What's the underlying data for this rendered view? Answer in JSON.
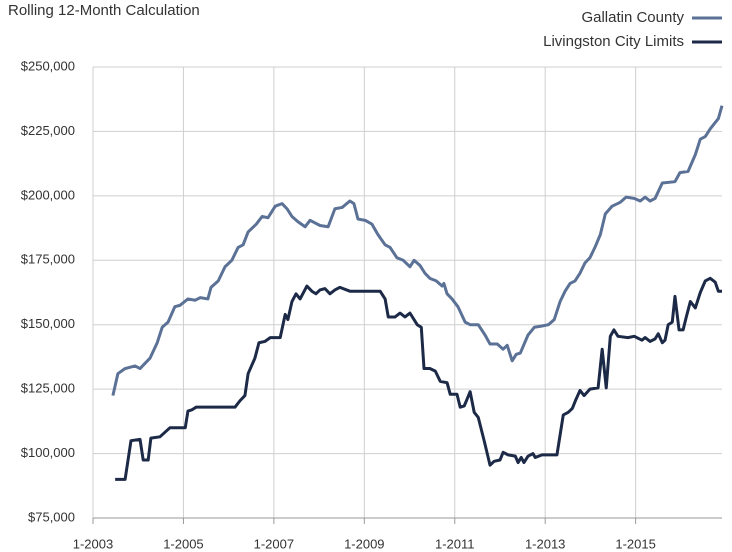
{
  "chart_data": {
    "type": "line",
    "title": "Rolling 12-Month Calculation",
    "xlim": [
      2003,
      2016.91
    ],
    "xticks": [
      {
        "value": 2003,
        "label": "1-2003"
      },
      {
        "value": 2005,
        "label": "1-2005"
      },
      {
        "value": 2007,
        "label": "1-2007"
      },
      {
        "value": 2009,
        "label": "1-2009"
      },
      {
        "value": 2011,
        "label": "1-2011"
      },
      {
        "value": 2013,
        "label": "1-2013"
      },
      {
        "value": 2015,
        "label": "1-2015"
      }
    ],
    "ylim": [
      75000,
      250000
    ],
    "yticks": [
      {
        "value": 75000,
        "label": "$75,000"
      },
      {
        "value": 100000,
        "label": "$100,000"
      },
      {
        "value": 125000,
        "label": "$125,000"
      },
      {
        "value": 150000,
        "label": "$150,000"
      },
      {
        "value": 175000,
        "label": "$175,000"
      },
      {
        "value": 200000,
        "label": "$200,000"
      },
      {
        "value": 225000,
        "label": "$225,000"
      },
      {
        "value": 250000,
        "label": "$250,000"
      }
    ],
    "grid": true,
    "legend": "top-right",
    "series": [
      {
        "name": "Gallatin County",
        "color": "#5b7196",
        "x": [
          2003.44,
          2003.55,
          2003.71,
          2003.93,
          2004.04,
          2004.26,
          2004.42,
          2004.53,
          2004.66,
          2004.81,
          2004.92,
          2005.1,
          2005.26,
          2005.37,
          2005.54,
          2005.61,
          2005.77,
          2005.92,
          2006.07,
          2006.21,
          2006.32,
          2006.43,
          2006.61,
          2006.74,
          2006.87,
          2007.03,
          2007.18,
          2007.29,
          2007.4,
          2007.53,
          2007.69,
          2007.8,
          2008.02,
          2008.2,
          2008.35,
          2008.51,
          2008.68,
          2008.77,
          2008.86,
          2009.02,
          2009.17,
          2009.3,
          2009.46,
          2009.57,
          2009.72,
          2009.86,
          2010.01,
          2010.1,
          2010.23,
          2010.34,
          2010.45,
          2010.59,
          2010.72,
          2010.76,
          2010.83,
          2010.94,
          2011.07,
          2011.23,
          2011.34,
          2011.52,
          2011.67,
          2011.78,
          2011.94,
          2012.07,
          2012.16,
          2012.27,
          2012.36,
          2012.45,
          2012.62,
          2012.76,
          2012.93,
          2013.07,
          2013.2,
          2013.33,
          2013.44,
          2013.55,
          2013.66,
          2013.77,
          2013.88,
          2013.99,
          2014.1,
          2014.22,
          2014.33,
          2014.48,
          2014.66,
          2014.79,
          2014.97,
          2015.1,
          2015.21,
          2015.32,
          2015.43,
          2015.59,
          2015.87,
          2015.98,
          2016.16,
          2016.32,
          2016.43,
          2016.54,
          2016.65,
          2016.83,
          2016.91
        ],
        "values": [
          122500,
          131000,
          133000,
          134000,
          133000,
          137000,
          143000,
          149000,
          151000,
          157000,
          157500,
          160000,
          159500,
          160500,
          160000,
          164500,
          167000,
          172500,
          175000,
          180000,
          181000,
          186000,
          189000,
          192000,
          191500,
          196000,
          197000,
          195000,
          192000,
          190000,
          188000,
          190500,
          188500,
          188000,
          195000,
          195500,
          198000,
          197000,
          191000,
          190500,
          189000,
          185000,
          181000,
          180000,
          176000,
          175000,
          172500,
          175000,
          173000,
          170000,
          168000,
          167000,
          165000,
          166000,
          162000,
          160000,
          157000,
          151000,
          150000,
          150000,
          146000,
          142500,
          142500,
          140500,
          142000,
          136000,
          138500,
          139000,
          146000,
          149000,
          149500,
          150000,
          152000,
          159000,
          163000,
          166000,
          167000,
          170000,
          174000,
          176000,
          180000,
          185000,
          193000,
          196000,
          197500,
          199500,
          199000,
          198000,
          199500,
          198000,
          199000,
          205000,
          205500,
          209000,
          209500,
          216000,
          222000,
          223000,
          226000,
          230000,
          235000
        ]
      },
      {
        "name": "Livingston City Limits",
        "color": "#1c2a47",
        "x": [
          2003.49,
          2003.71,
          2003.84,
          2004.04,
          2004.11,
          2004.22,
          2004.28,
          2004.48,
          2004.7,
          2005.04,
          2005.1,
          2005.19,
          2005.28,
          2006.14,
          2006.25,
          2006.36,
          2006.43,
          2006.58,
          2006.67,
          2006.8,
          2006.92,
          2007.14,
          2007.25,
          2007.31,
          2007.4,
          2007.49,
          2007.58,
          2007.73,
          2007.84,
          2007.93,
          2008.02,
          2008.13,
          2008.24,
          2008.35,
          2008.46,
          2008.68,
          2009.35,
          2009.46,
          2009.53,
          2009.68,
          2009.79,
          2009.9,
          2010.01,
          2010.17,
          2010.26,
          2010.32,
          2010.45,
          2010.57,
          2010.68,
          2010.83,
          2010.9,
          2011.05,
          2011.12,
          2011.21,
          2011.27,
          2011.34,
          2011.43,
          2011.52,
          2011.65,
          2011.78,
          2011.87,
          2012.0,
          2012.07,
          2012.18,
          2012.34,
          2012.4,
          2012.47,
          2012.53,
          2012.62,
          2012.73,
          2012.78,
          2012.93,
          2013.26,
          2013.4,
          2013.51,
          2013.6,
          2013.68,
          2013.77,
          2013.86,
          2013.99,
          2014.17,
          2014.26,
          2014.35,
          2014.44,
          2014.52,
          2014.61,
          2014.83,
          2014.97,
          2015.14,
          2015.21,
          2015.32,
          2015.43,
          2015.5,
          2015.59,
          2015.65,
          2015.72,
          2015.81,
          2015.87,
          2015.96,
          2016.05,
          2016.12,
          2016.21,
          2016.32,
          2016.43,
          2016.54,
          2016.65,
          2016.76,
          2016.83,
          2016.91
        ],
        "values": [
          90000,
          90000,
          105000,
          105500,
          97500,
          97500,
          106000,
          106500,
          110000,
          110000,
          116500,
          117000,
          118000,
          118000,
          120500,
          122500,
          131000,
          137000,
          143000,
          143500,
          145000,
          145000,
          154000,
          152000,
          159000,
          162000,
          160000,
          165000,
          163000,
          162000,
          163500,
          164000,
          162000,
          163500,
          164500,
          163000,
          163000,
          160000,
          153000,
          153000,
          154500,
          153000,
          154500,
          150000,
          149000,
          133000,
          133000,
          132000,
          128000,
          127500,
          123000,
          123000,
          118000,
          118500,
          121000,
          124000,
          116000,
          114000,
          105000,
          95500,
          97000,
          97500,
          100500,
          99500,
          99000,
          96500,
          98500,
          96500,
          99000,
          100000,
          98500,
          99500,
          99500,
          115000,
          116000,
          117500,
          121000,
          124500,
          122500,
          125000,
          125500,
          140500,
          125500,
          145500,
          148000,
          145500,
          145000,
          145500,
          144000,
          145000,
          143500,
          144500,
          146500,
          143000,
          144000,
          150000,
          151000,
          161000,
          148000,
          148000,
          153000,
          159000,
          156500,
          162500,
          167000,
          168000,
          166500,
          163000,
          163000
        ]
      }
    ]
  }
}
